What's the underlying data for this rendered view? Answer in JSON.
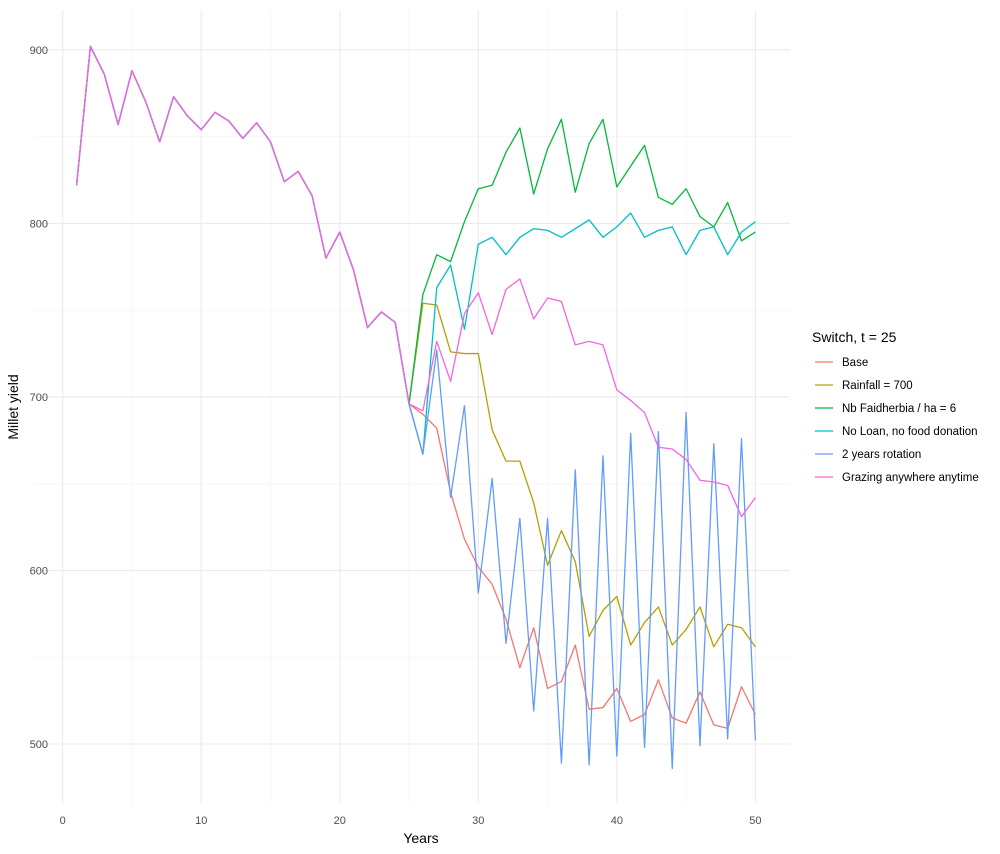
{
  "chart_data": {
    "type": "line",
    "xlabel": "Years",
    "ylabel": "Millet yield",
    "xlim": [
      -2,
      52.5
    ],
    "ylim": [
      466,
      923
    ],
    "x_ticks": [
      0,
      10,
      20,
      30,
      40,
      50
    ],
    "y_ticks": [
      500,
      600,
      700,
      800,
      900
    ],
    "grid": true,
    "legend_position": "right",
    "legend_title": "Switch, t = 25",
    "x": [
      1,
      2,
      3,
      4,
      5,
      6,
      7,
      8,
      9,
      10,
      11,
      12,
      13,
      14,
      15,
      16,
      17,
      18,
      19,
      20,
      21,
      22,
      23,
      24,
      25,
      26,
      27,
      28,
      29,
      30,
      31,
      32,
      33,
      34,
      35,
      36,
      37,
      38,
      39,
      40,
      41,
      42,
      43,
      44,
      45,
      46,
      47,
      48,
      49,
      50
    ],
    "series": [
      {
        "name": "Base",
        "color": "#F8766D",
        "values": [
          822,
          902,
          886,
          857,
          888,
          870,
          847,
          873,
          862,
          854,
          864,
          859,
          849,
          858,
          847,
          824,
          830,
          816,
          780,
          795,
          773,
          740,
          749,
          743,
          696,
          690,
          682,
          645,
          618,
          602,
          592,
          572,
          544,
          567,
          532,
          536,
          557,
          520,
          521,
          532,
          513,
          517,
          537,
          515,
          512,
          530,
          511,
          509,
          533,
          517
        ]
      },
      {
        "name": "Rainfall = 700",
        "color": "#B79F00",
        "values": [
          822,
          902,
          886,
          857,
          888,
          870,
          847,
          873,
          862,
          854,
          864,
          859,
          849,
          858,
          847,
          824,
          830,
          816,
          780,
          795,
          773,
          740,
          749,
          743,
          696,
          754,
          753,
          726,
          725,
          725,
          681,
          663,
          663,
          639,
          603,
          623,
          605,
          562,
          577,
          585,
          557,
          570,
          579,
          557,
          566,
          579,
          556,
          569,
          567,
          556
        ]
      },
      {
        "name": "Nb Faidherbia / ha = 6",
        "color": "#00BA38",
        "values": [
          822,
          902,
          886,
          857,
          888,
          870,
          847,
          873,
          862,
          854,
          864,
          859,
          849,
          858,
          847,
          824,
          830,
          816,
          780,
          795,
          773,
          740,
          749,
          743,
          696,
          759,
          782,
          778,
          801,
          820,
          822,
          841,
          855,
          817,
          843,
          860,
          818,
          846,
          860,
          821,
          833,
          845,
          815,
          811,
          820,
          804,
          798,
          812,
          790,
          795
        ]
      },
      {
        "name": "No Loan, no food donation",
        "color": "#00BFC4",
        "values": [
          822,
          902,
          886,
          857,
          888,
          870,
          847,
          873,
          862,
          854,
          864,
          859,
          849,
          858,
          847,
          824,
          830,
          816,
          780,
          795,
          773,
          740,
          749,
          743,
          696,
          667,
          763,
          776,
          739,
          788,
          792,
          782,
          792,
          797,
          796,
          792,
          797,
          802,
          792,
          798,
          806,
          792,
          796,
          798,
          782,
          796,
          798,
          782,
          795,
          801
        ]
      },
      {
        "name": "2 years rotation",
        "color": "#619CFF",
        "values": [
          822,
          902,
          886,
          857,
          888,
          870,
          847,
          873,
          862,
          854,
          864,
          859,
          849,
          858,
          847,
          824,
          830,
          816,
          780,
          795,
          773,
          740,
          749,
          743,
          696,
          667,
          727,
          642,
          695,
          587,
          653,
          558,
          630,
          519,
          630,
          489,
          658,
          488,
          666,
          493,
          679,
          498,
          680,
          486,
          691,
          499,
          673,
          503,
          676,
          502
        ]
      },
      {
        "name": "Grazing anywhere anytime",
        "color": "#F564E3",
        "values": [
          822,
          902,
          886,
          857,
          888,
          870,
          847,
          873,
          862,
          854,
          864,
          859,
          849,
          858,
          847,
          824,
          830,
          816,
          780,
          795,
          773,
          740,
          749,
          743,
          696,
          692,
          732,
          709,
          748,
          760,
          736,
          762,
          768,
          745,
          757,
          755,
          730,
          732,
          730,
          704,
          698,
          691,
          671,
          670,
          664,
          652,
          651,
          649,
          631,
          642
        ]
      }
    ]
  }
}
